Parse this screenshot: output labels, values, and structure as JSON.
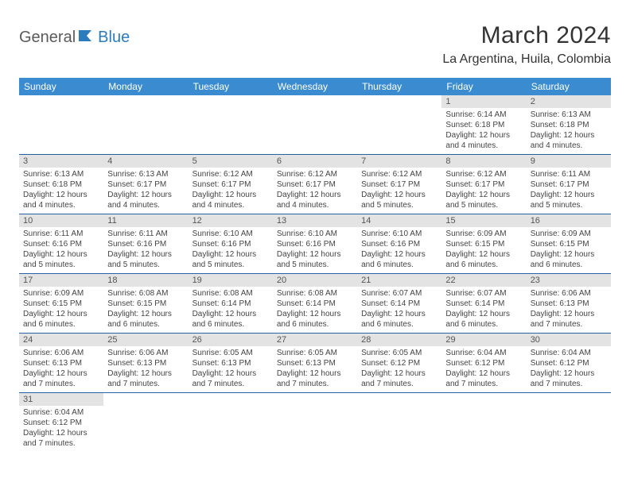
{
  "logo": {
    "text1": "General",
    "text2": "Blue"
  },
  "title": "March 2024",
  "location": "La Argentina, Huila, Colombia",
  "colors": {
    "header_bg": "#3b8bd0",
    "header_text": "#ffffff",
    "daynum_bg": "#e3e3e3",
    "border": "#2862a5",
    "logo_blue": "#2b7bbf"
  },
  "days_of_week": [
    "Sunday",
    "Monday",
    "Tuesday",
    "Wednesday",
    "Thursday",
    "Friday",
    "Saturday"
  ],
  "weeks": [
    [
      null,
      null,
      null,
      null,
      null,
      {
        "n": "1",
        "sr": "Sunrise: 6:14 AM",
        "ss": "Sunset: 6:18 PM",
        "dl": "Daylight: 12 hours and 4 minutes."
      },
      {
        "n": "2",
        "sr": "Sunrise: 6:13 AM",
        "ss": "Sunset: 6:18 PM",
        "dl": "Daylight: 12 hours and 4 minutes."
      }
    ],
    [
      {
        "n": "3",
        "sr": "Sunrise: 6:13 AM",
        "ss": "Sunset: 6:18 PM",
        "dl": "Daylight: 12 hours and 4 minutes."
      },
      {
        "n": "4",
        "sr": "Sunrise: 6:13 AM",
        "ss": "Sunset: 6:17 PM",
        "dl": "Daylight: 12 hours and 4 minutes."
      },
      {
        "n": "5",
        "sr": "Sunrise: 6:12 AM",
        "ss": "Sunset: 6:17 PM",
        "dl": "Daylight: 12 hours and 4 minutes."
      },
      {
        "n": "6",
        "sr": "Sunrise: 6:12 AM",
        "ss": "Sunset: 6:17 PM",
        "dl": "Daylight: 12 hours and 4 minutes."
      },
      {
        "n": "7",
        "sr": "Sunrise: 6:12 AM",
        "ss": "Sunset: 6:17 PM",
        "dl": "Daylight: 12 hours and 5 minutes."
      },
      {
        "n": "8",
        "sr": "Sunrise: 6:12 AM",
        "ss": "Sunset: 6:17 PM",
        "dl": "Daylight: 12 hours and 5 minutes."
      },
      {
        "n": "9",
        "sr": "Sunrise: 6:11 AM",
        "ss": "Sunset: 6:17 PM",
        "dl": "Daylight: 12 hours and 5 minutes."
      }
    ],
    [
      {
        "n": "10",
        "sr": "Sunrise: 6:11 AM",
        "ss": "Sunset: 6:16 PM",
        "dl": "Daylight: 12 hours and 5 minutes."
      },
      {
        "n": "11",
        "sr": "Sunrise: 6:11 AM",
        "ss": "Sunset: 6:16 PM",
        "dl": "Daylight: 12 hours and 5 minutes."
      },
      {
        "n": "12",
        "sr": "Sunrise: 6:10 AM",
        "ss": "Sunset: 6:16 PM",
        "dl": "Daylight: 12 hours and 5 minutes."
      },
      {
        "n": "13",
        "sr": "Sunrise: 6:10 AM",
        "ss": "Sunset: 6:16 PM",
        "dl": "Daylight: 12 hours and 5 minutes."
      },
      {
        "n": "14",
        "sr": "Sunrise: 6:10 AM",
        "ss": "Sunset: 6:16 PM",
        "dl": "Daylight: 12 hours and 6 minutes."
      },
      {
        "n": "15",
        "sr": "Sunrise: 6:09 AM",
        "ss": "Sunset: 6:15 PM",
        "dl": "Daylight: 12 hours and 6 minutes."
      },
      {
        "n": "16",
        "sr": "Sunrise: 6:09 AM",
        "ss": "Sunset: 6:15 PM",
        "dl": "Daylight: 12 hours and 6 minutes."
      }
    ],
    [
      {
        "n": "17",
        "sr": "Sunrise: 6:09 AM",
        "ss": "Sunset: 6:15 PM",
        "dl": "Daylight: 12 hours and 6 minutes."
      },
      {
        "n": "18",
        "sr": "Sunrise: 6:08 AM",
        "ss": "Sunset: 6:15 PM",
        "dl": "Daylight: 12 hours and 6 minutes."
      },
      {
        "n": "19",
        "sr": "Sunrise: 6:08 AM",
        "ss": "Sunset: 6:14 PM",
        "dl": "Daylight: 12 hours and 6 minutes."
      },
      {
        "n": "20",
        "sr": "Sunrise: 6:08 AM",
        "ss": "Sunset: 6:14 PM",
        "dl": "Daylight: 12 hours and 6 minutes."
      },
      {
        "n": "21",
        "sr": "Sunrise: 6:07 AM",
        "ss": "Sunset: 6:14 PM",
        "dl": "Daylight: 12 hours and 6 minutes."
      },
      {
        "n": "22",
        "sr": "Sunrise: 6:07 AM",
        "ss": "Sunset: 6:14 PM",
        "dl": "Daylight: 12 hours and 6 minutes."
      },
      {
        "n": "23",
        "sr": "Sunrise: 6:06 AM",
        "ss": "Sunset: 6:13 PM",
        "dl": "Daylight: 12 hours and 7 minutes."
      }
    ],
    [
      {
        "n": "24",
        "sr": "Sunrise: 6:06 AM",
        "ss": "Sunset: 6:13 PM",
        "dl": "Daylight: 12 hours and 7 minutes."
      },
      {
        "n": "25",
        "sr": "Sunrise: 6:06 AM",
        "ss": "Sunset: 6:13 PM",
        "dl": "Daylight: 12 hours and 7 minutes."
      },
      {
        "n": "26",
        "sr": "Sunrise: 6:05 AM",
        "ss": "Sunset: 6:13 PM",
        "dl": "Daylight: 12 hours and 7 minutes."
      },
      {
        "n": "27",
        "sr": "Sunrise: 6:05 AM",
        "ss": "Sunset: 6:13 PM",
        "dl": "Daylight: 12 hours and 7 minutes."
      },
      {
        "n": "28",
        "sr": "Sunrise: 6:05 AM",
        "ss": "Sunset: 6:12 PM",
        "dl": "Daylight: 12 hours and 7 minutes."
      },
      {
        "n": "29",
        "sr": "Sunrise: 6:04 AM",
        "ss": "Sunset: 6:12 PM",
        "dl": "Daylight: 12 hours and 7 minutes."
      },
      {
        "n": "30",
        "sr": "Sunrise: 6:04 AM",
        "ss": "Sunset: 6:12 PM",
        "dl": "Daylight: 12 hours and 7 minutes."
      }
    ],
    [
      {
        "n": "31",
        "sr": "Sunrise: 6:04 AM",
        "ss": "Sunset: 6:12 PM",
        "dl": "Daylight: 12 hours and 7 minutes."
      },
      null,
      null,
      null,
      null,
      null,
      null
    ]
  ]
}
